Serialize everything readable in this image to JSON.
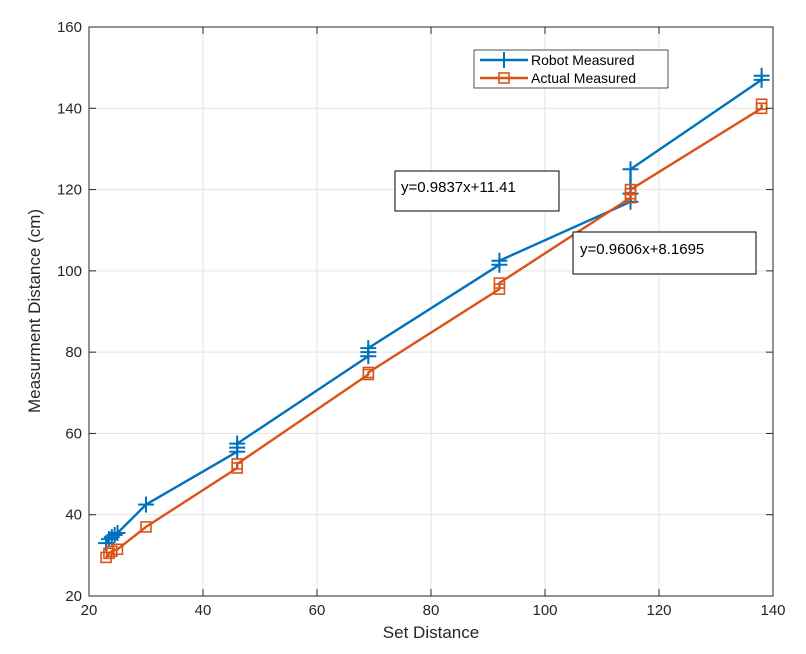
{
  "chart_data": {
    "type": "line",
    "title": "",
    "xlabel": "Set Distance",
    "ylabel": "Measurment Distance (cm)",
    "xlim": [
      20,
      140
    ],
    "ylim": [
      20,
      160
    ],
    "xticks": [
      20,
      40,
      60,
      80,
      100,
      120,
      140
    ],
    "yticks": [
      20,
      40,
      60,
      80,
      100,
      120,
      140,
      160
    ],
    "grid": true,
    "legend_position": "top-right",
    "series": [
      {
        "name": "Robot Measured",
        "color": "#0072BD",
        "marker": "plus",
        "x": [
          23,
          23.5,
          24,
          24.5,
          25,
          30,
          46,
          46,
          46,
          69,
          69,
          69,
          92,
          92,
          115,
          115,
          115,
          138,
          138
        ],
        "y": [
          33,
          34,
          34.5,
          35,
          35.5,
          42.5,
          55.5,
          56.5,
          57.5,
          79,
          80,
          81,
          101.5,
          102.5,
          117,
          119,
          125,
          147,
          148
        ]
      },
      {
        "name": "Actual Measured",
        "color": "#D95319",
        "marker": "square",
        "x": [
          23,
          23.5,
          24,
          25,
          30,
          46,
          46,
          69,
          69,
          92,
          92,
          115,
          115,
          115,
          138,
          138
        ],
        "y": [
          29.5,
          30.5,
          31,
          31.5,
          37,
          51.5,
          52.5,
          74.5,
          75,
          95.5,
          97,
          118,
          119,
          120,
          140,
          141
        ]
      }
    ],
    "annotations": [
      {
        "text": "y=0.9837x+11.41"
      },
      {
        "text": "y=0.9606x+8.1695"
      }
    ]
  }
}
